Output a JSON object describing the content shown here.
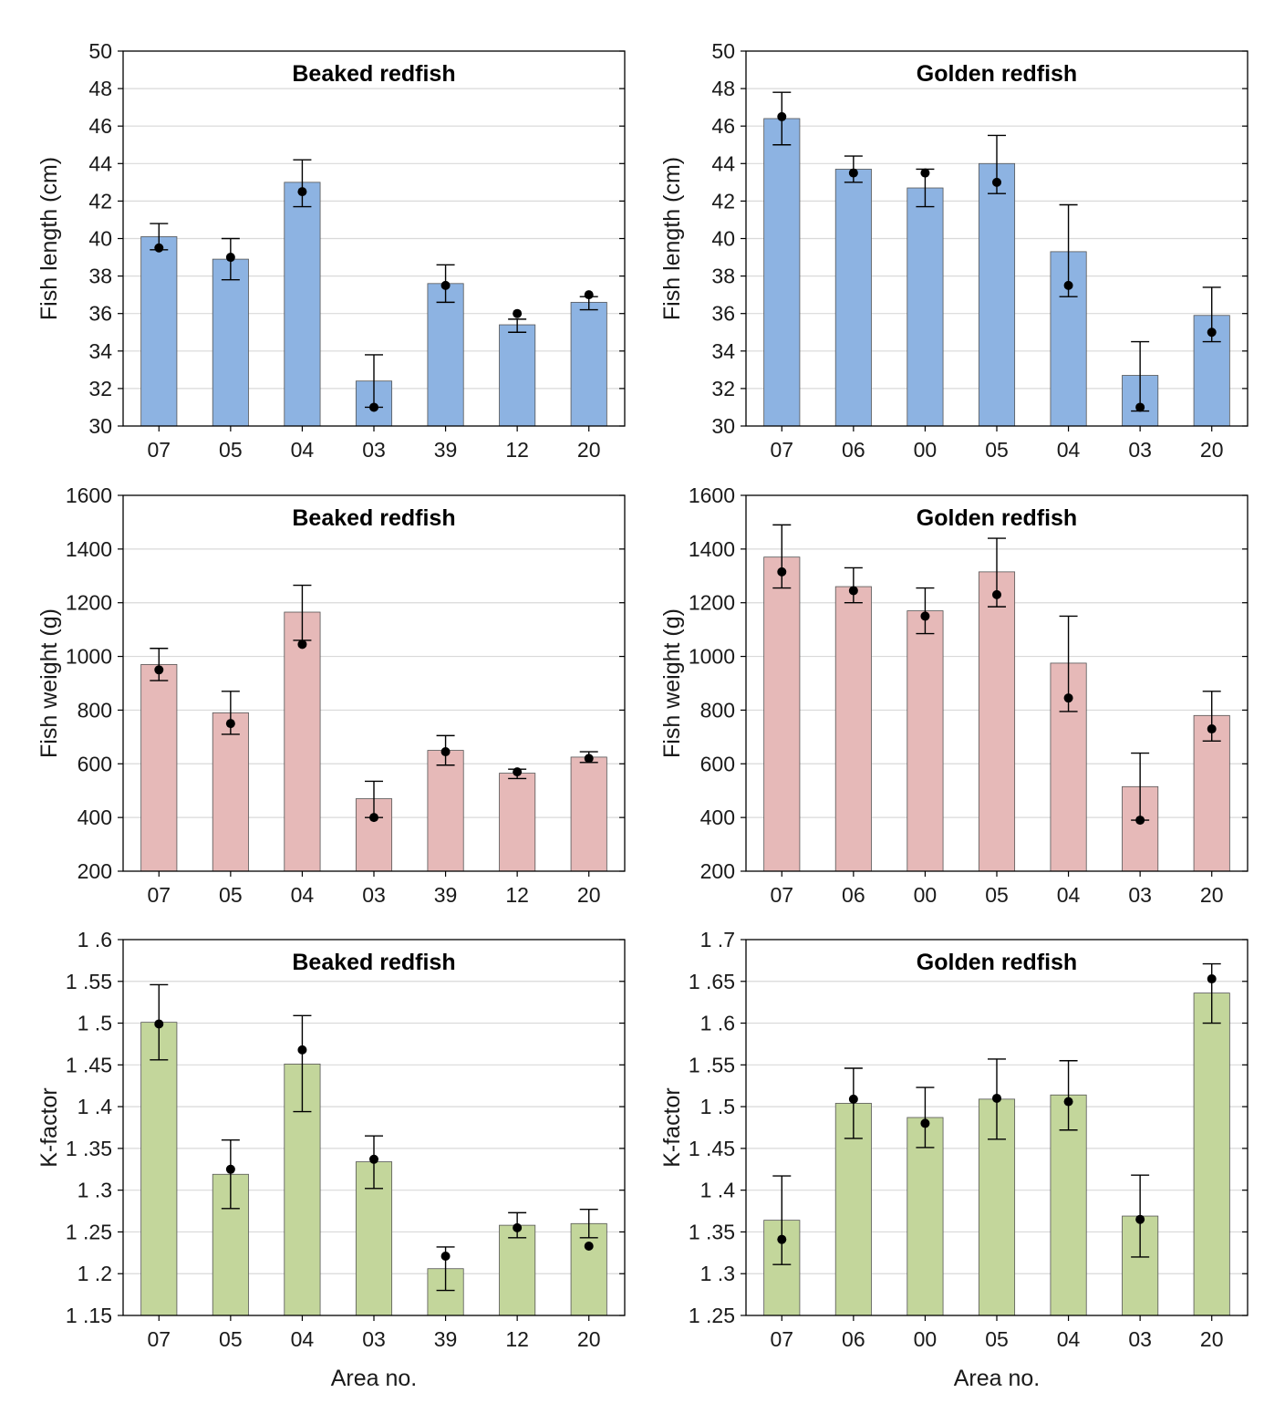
{
  "colors": {
    "length": "#8db3e2",
    "weight": "#e6b9b8",
    "kfactor": "#c3d69b",
    "grid": "#d9d9d9",
    "frame": "#000000"
  },
  "chart_data": [
    {
      "type": "bar",
      "title": "Beaked redfish",
      "ylabel": "Fish length (cm)",
      "xlabel": "",
      "categories": [
        "07",
        "05",
        "04",
        "03",
        "39",
        "12",
        "20"
      ],
      "values": [
        40.1,
        38.9,
        43.0,
        32.4,
        37.6,
        35.4,
        36.6
      ],
      "points": [
        39.5,
        39.0,
        42.5,
        31.0,
        37.5,
        36.0,
        37.0
      ],
      "err_low": [
        39.4,
        37.8,
        41.7,
        31.0,
        36.6,
        35.0,
        36.2
      ],
      "err_high": [
        40.8,
        40.0,
        44.2,
        33.8,
        38.6,
        35.7,
        36.9
      ],
      "ylim": [
        30,
        50
      ],
      "yticks": [
        "30",
        "32",
        "34",
        "36",
        "38",
        "40",
        "42",
        "44",
        "46",
        "48",
        "50"
      ],
      "grid": true
    },
    {
      "type": "bar",
      "title": "Golden redfish",
      "ylabel": "Fish length (cm)",
      "xlabel": "",
      "categories": [
        "07",
        "06",
        "00",
        "05",
        "04",
        "03",
        "20"
      ],
      "values": [
        46.4,
        43.7,
        42.7,
        44.0,
        39.3,
        32.7,
        35.9
      ],
      "points": [
        46.5,
        43.5,
        43.5,
        43.0,
        37.5,
        31.0,
        35.0
      ],
      "err_low": [
        45.0,
        43.0,
        41.7,
        42.4,
        36.9,
        30.8,
        34.5
      ],
      "err_high": [
        47.8,
        44.4,
        43.7,
        45.5,
        41.8,
        34.5,
        37.4
      ],
      "ylim": [
        30,
        50
      ],
      "yticks": [
        "30",
        "32",
        "34",
        "36",
        "38",
        "40",
        "42",
        "44",
        "46",
        "48",
        "50"
      ],
      "grid": true
    },
    {
      "type": "bar",
      "title": "Beaked redfish",
      "ylabel": "Fish weight (g)",
      "xlabel": "",
      "categories": [
        "07",
        "05",
        "04",
        "03",
        "39",
        "12",
        "20"
      ],
      "values": [
        970,
        790,
        1165,
        470,
        650,
        565,
        625
      ],
      "points": [
        950,
        750,
        1045,
        400,
        645,
        570,
        620
      ],
      "err_low": [
        910,
        710,
        1060,
        400,
        595,
        545,
        605
      ],
      "err_high": [
        1030,
        870,
        1265,
        535,
        705,
        580,
        645
      ],
      "ylim": [
        200,
        1600
      ],
      "yticks": [
        "200",
        "400",
        "600",
        "800",
        "1000",
        "1200",
        "1400",
        "1600"
      ],
      "grid": true
    },
    {
      "type": "bar",
      "title": "Golden redfish",
      "ylabel": "Fish weight (g)",
      "xlabel": "",
      "categories": [
        "07",
        "06",
        "00",
        "05",
        "04",
        "03",
        "20"
      ],
      "values": [
        1370,
        1260,
        1170,
        1315,
        975,
        515,
        780
      ],
      "points": [
        1315,
        1245,
        1150,
        1230,
        845,
        390,
        730
      ],
      "err_low": [
        1255,
        1200,
        1085,
        1185,
        795,
        390,
        685
      ],
      "err_high": [
        1490,
        1330,
        1255,
        1440,
        1150,
        640,
        870
      ],
      "ylim": [
        200,
        1600
      ],
      "yticks": [
        "200",
        "400",
        "600",
        "800",
        "1000",
        "1200",
        "1400",
        "1600"
      ],
      "grid": true
    },
    {
      "type": "bar",
      "title": "Beaked redfish",
      "ylabel": "K-factor",
      "xlabel": "Area no.",
      "categories": [
        "07",
        "05",
        "04",
        "03",
        "39",
        "12",
        "20"
      ],
      "values": [
        1.501,
        1.319,
        1.451,
        1.334,
        1.206,
        1.258,
        1.26
      ],
      "points": [
        1.499,
        1.325,
        1.468,
        1.337,
        1.221,
        1.255,
        1.233
      ],
      "err_low": [
        1.456,
        1.278,
        1.394,
        1.302,
        1.18,
        1.243,
        1.243
      ],
      "err_high": [
        1.546,
        1.36,
        1.509,
        1.365,
        1.232,
        1.273,
        1.277
      ],
      "ylim": [
        1.15,
        1.6
      ],
      "yticks": [
        "1 .15",
        "1 .2",
        "1 .25",
        "1 .3",
        "1 .35",
        "1 .4",
        "1 .45",
        "1 .5",
        "1 .55",
        "1 .6"
      ],
      "grid": true
    },
    {
      "type": "bar",
      "title": "Golden redfish",
      "ylabel": "K-factor",
      "xlabel": "Area no.",
      "categories": [
        "07",
        "06",
        "00",
        "05",
        "04",
        "03",
        "20"
      ],
      "values": [
        1.364,
        1.504,
        1.487,
        1.509,
        1.514,
        1.369,
        1.636
      ],
      "points": [
        1.341,
        1.509,
        1.48,
        1.51,
        1.506,
        1.365,
        1.653
      ],
      "err_low": [
        1.311,
        1.462,
        1.451,
        1.461,
        1.472,
        1.32,
        1.6
      ],
      "err_high": [
        1.417,
        1.546,
        1.523,
        1.557,
        1.555,
        1.418,
        1.671
      ],
      "ylim": [
        1.25,
        1.7
      ],
      "yticks": [
        "1 .25",
        "1 .3",
        "1 .35",
        "1 .4",
        "1 .45",
        "1 .5",
        "1 .55",
        "1 .6",
        "1 .65",
        "1 .7"
      ],
      "grid": true
    }
  ]
}
